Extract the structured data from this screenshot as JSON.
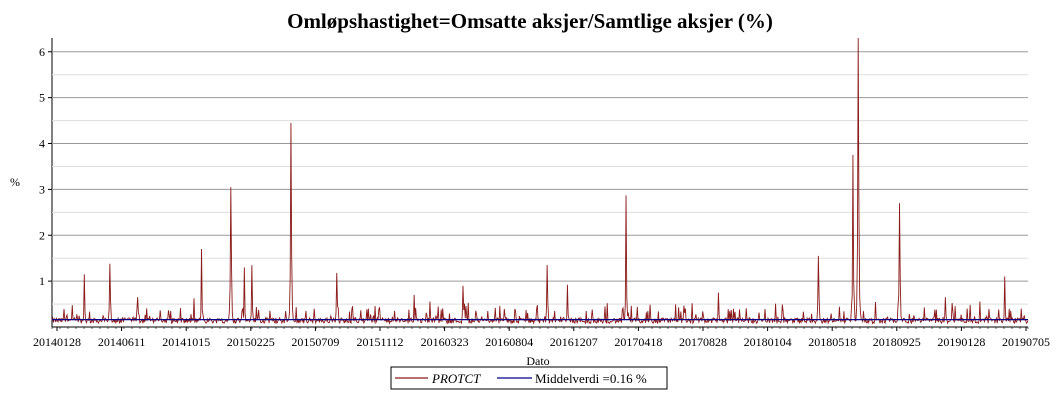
{
  "chart_data": {
    "type": "line",
    "title": "Omløpshastighet=Omsatte aksjer/Samtlige aksjer (%)",
    "xlabel": "Dato",
    "ylabel": "%",
    "ylim": [
      0,
      6.3
    ],
    "yticks": [
      1,
      2,
      3,
      4,
      5,
      6
    ],
    "xticks": [
      "20140128",
      "20140611",
      "20141015",
      "20150225",
      "20150709",
      "20151112",
      "20160323",
      "20160804",
      "20161207",
      "20170418",
      "20170828",
      "20180104",
      "20180518",
      "20180925",
      "20190128",
      "20190705"
    ],
    "grid": true,
    "legend_position": "bottom",
    "series": [
      {
        "name": "PROTCT",
        "color": "#8b1a1a",
        "peaks": [
          {
            "t": 0.033,
            "v": 1.15
          },
          {
            "t": 0.059,
            "v": 1.38
          },
          {
            "t": 0.088,
            "v": 0.65
          },
          {
            "t": 0.153,
            "v": 1.7
          },
          {
            "t": 0.183,
            "v": 3.05
          },
          {
            "t": 0.197,
            "v": 1.3
          },
          {
            "t": 0.205,
            "v": 1.35
          },
          {
            "t": 0.245,
            "v": 4.45
          },
          {
            "t": 0.292,
            "v": 1.18
          },
          {
            "t": 0.371,
            "v": 0.7
          },
          {
            "t": 0.421,
            "v": 0.9
          },
          {
            "t": 0.507,
            "v": 1.35
          },
          {
            "t": 0.528,
            "v": 0.92
          },
          {
            "t": 0.588,
            "v": 2.87
          },
          {
            "t": 0.683,
            "v": 0.75
          },
          {
            "t": 0.785,
            "v": 1.55
          },
          {
            "t": 0.821,
            "v": 3.75
          },
          {
            "t": 0.826,
            "v": 6.3
          },
          {
            "t": 0.868,
            "v": 2.7
          },
          {
            "t": 0.915,
            "v": 0.65
          },
          {
            "t": 0.976,
            "v": 1.1
          }
        ]
      },
      {
        "name": "Middelverdi =0.16 %",
        "color": "#00008b",
        "value": 0.16
      }
    ]
  }
}
